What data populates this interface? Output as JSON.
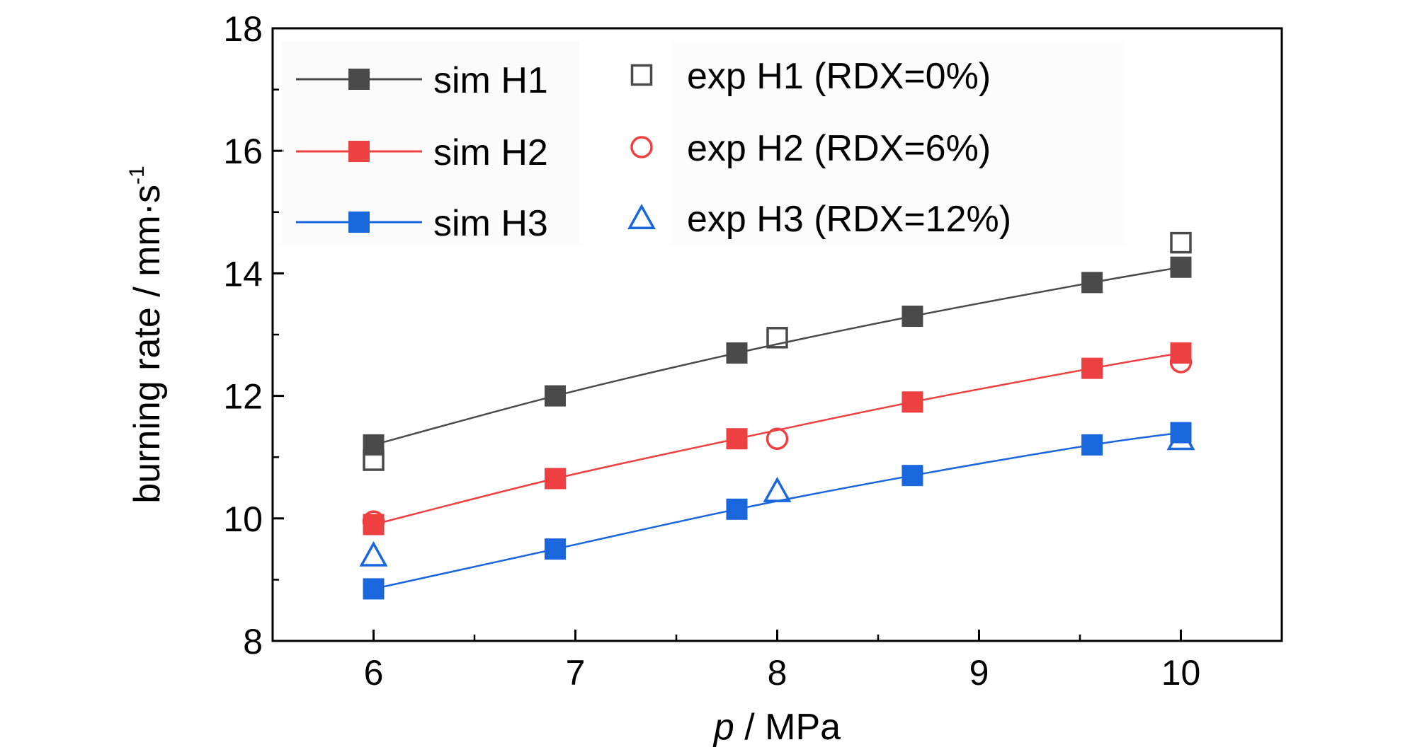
{
  "chart_data": {
    "type": "scatter",
    "xlabel": "p / MPa",
    "ylabel": "burning rate / mm·s⁻¹",
    "xlim": [
      5.5,
      10.5
    ],
    "ylim": [
      8,
      18
    ],
    "x_ticks": [
      "6",
      "7",
      "8",
      "9",
      "10"
    ],
    "y_ticks": [
      "8",
      "10",
      "12",
      "14",
      "16",
      "18"
    ],
    "grid": false,
    "legend_position": "top-left",
    "series": [
      {
        "name": "sim H1",
        "kind": "line-marker",
        "marker": "square-filled",
        "color": "#4a4a4a",
        "x": [
          6,
          6.9,
          7.8,
          8.67,
          9.56,
          10
        ],
        "y": [
          11.2,
          12.0,
          12.7,
          13.3,
          13.85,
          14.1
        ]
      },
      {
        "name": "sim H2",
        "kind": "line-marker",
        "marker": "square-filled",
        "color": "#ee4040",
        "x": [
          6,
          6.9,
          7.8,
          8.67,
          9.56,
          10
        ],
        "y": [
          9.9,
          10.65,
          11.3,
          11.9,
          12.45,
          12.7
        ]
      },
      {
        "name": "sim H3",
        "kind": "line-marker",
        "marker": "square-filled",
        "color": "#1a66dd",
        "x": [
          6,
          6.9,
          7.8,
          8.67,
          9.56,
          10
        ],
        "y": [
          8.85,
          9.5,
          10.15,
          10.7,
          11.2,
          11.4
        ]
      },
      {
        "name": "exp H1 (RDX=0%)",
        "kind": "marker",
        "marker": "square-open",
        "color": "#4a4a4a",
        "x": [
          6,
          8,
          10
        ],
        "y": [
          10.95,
          12.95,
          14.5
        ]
      },
      {
        "name": "exp H2 (RDX=6%)",
        "kind": "marker",
        "marker": "circle-open",
        "color": "#ee4040",
        "x": [
          6,
          8,
          10
        ],
        "y": [
          9.95,
          11.3,
          12.55
        ]
      },
      {
        "name": "exp H3 (RDX=12%)",
        "kind": "marker",
        "marker": "triangle-open",
        "color": "#1a66dd",
        "x": [
          6,
          8,
          10
        ],
        "y": [
          9.4,
          10.45,
          11.3
        ]
      }
    ]
  },
  "axis_text": {
    "xlabel_italic": "p",
    "xlabel_rest": " / MPa",
    "ylabel_main": "burning rate / mm·s",
    "ylabel_sup": "-1"
  }
}
